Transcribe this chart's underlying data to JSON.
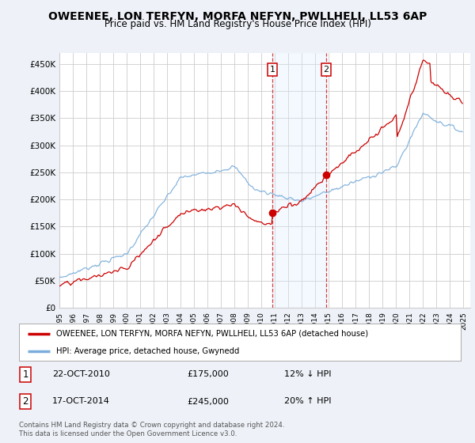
{
  "title": "OWEENEE, LON TERFYN, MORFA NEFYN, PWLLHELI, LL53 6AP",
  "subtitle": "Price paid vs. HM Land Registry's House Price Index (HPI)",
  "title_fontsize": 10,
  "subtitle_fontsize": 8.5,
  "ylabel_ticks": [
    "£0",
    "£50K",
    "£100K",
    "£150K",
    "£200K",
    "£250K",
    "£300K",
    "£350K",
    "£400K",
    "£450K"
  ],
  "ylabel_values": [
    0,
    50000,
    100000,
    150000,
    200000,
    250000,
    300000,
    350000,
    400000,
    450000
  ],
  "ylim": [
    0,
    470000
  ],
  "xlim_start": 1995.0,
  "xlim_end": 2025.5,
  "background_color": "#eef2f8",
  "plot_bg_color": "#ffffff",
  "grid_color": "#cccccc",
  "red_line_color": "#cc0000",
  "blue_line_color": "#7aaddb",
  "vline_color": "#cc0000",
  "shade_color": "#ddeeff",
  "sale1_x": 2010.8,
  "sale1_y": 175000,
  "sale2_x": 2014.8,
  "sale2_y": 245000,
  "legend_red": "OWEENEE, LON TERFYN, MORFA NEFYN, PWLLHELI, LL53 6AP (detached house)",
  "legend_blue": "HPI: Average price, detached house, Gwynedd",
  "annotation1_num": "1",
  "annotation1_date": "22-OCT-2010",
  "annotation1_price": "£175,000",
  "annotation1_hpi": "12% ↓ HPI",
  "annotation2_num": "2",
  "annotation2_date": "17-OCT-2014",
  "annotation2_price": "£245,000",
  "annotation2_hpi": "20% ↑ HPI",
  "footer": "Contains HM Land Registry data © Crown copyright and database right 2024.\nThis data is licensed under the Open Government Licence v3.0."
}
